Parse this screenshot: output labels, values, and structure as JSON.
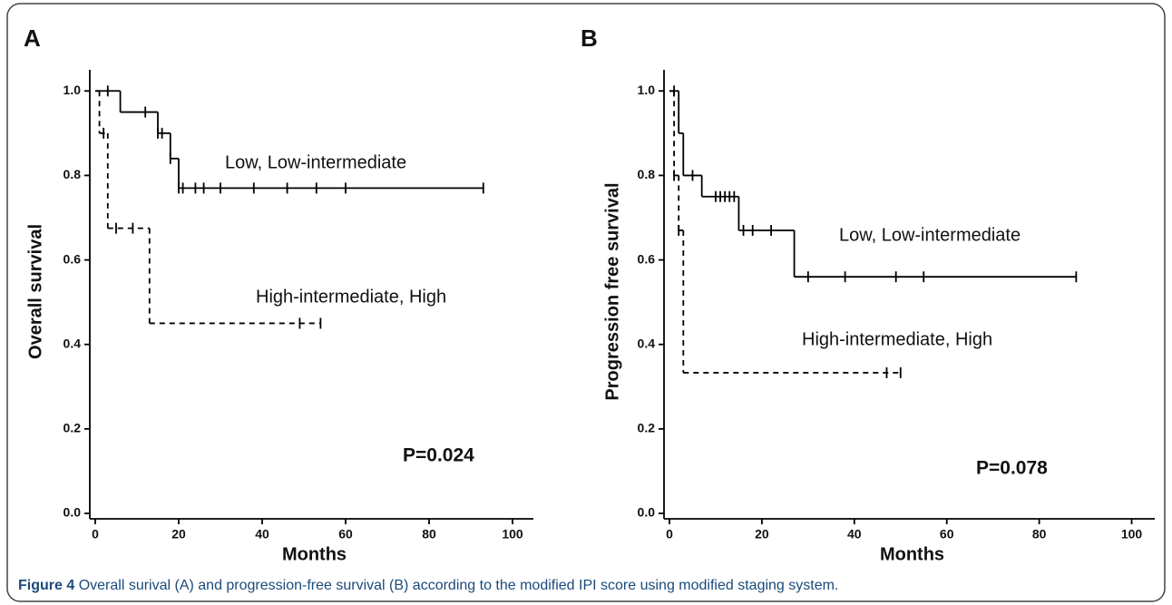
{
  "chart_data": [
    {
      "type": "line",
      "panel_label": "A",
      "xlabel": "Months",
      "ylabel": "Overall survival",
      "xlim": [
        0,
        105
      ],
      "xticks": [
        0,
        20,
        40,
        60,
        80,
        100
      ],
      "ylim": [
        0,
        1.05
      ],
      "yticks": [
        {
          "value": 0,
          "label": "0.0"
        },
        0.2,
        0.4,
        0.6,
        0.8,
        {
          "value": 1,
          "label": "1.0"
        }
      ],
      "series": [
        {
          "name": "Low, Low-intermediate",
          "color": "#000000",
          "dash": false,
          "x": [
            0,
            6,
            15,
            18,
            20,
            93
          ],
          "values": [
            1.0,
            0.95,
            0.9,
            0.84,
            0.77,
            0.77
          ],
          "censor_x": [
            3,
            12,
            15,
            16,
            18,
            20,
            21,
            24,
            26,
            30,
            38,
            46,
            53,
            60,
            93
          ],
          "censor_values": [
            1.0,
            0.95,
            0.9,
            0.9,
            0.84,
            0.77,
            0.77,
            0.77,
            0.77,
            0.77,
            0.77,
            0.77,
            0.77,
            0.77,
            0.77
          ]
        },
        {
          "name": "High-intermediate, High",
          "color": "#000000",
          "dash": true,
          "x": [
            0,
            1,
            3,
            13,
            54
          ],
          "values": [
            1.0,
            0.9,
            0.675,
            0.45,
            0.45
          ],
          "censor_x": [
            2,
            5,
            9,
            49,
            54
          ],
          "censor_values": [
            0.9,
            0.675,
            0.675,
            0.45,
            0.45
          ]
        }
      ],
      "p_value": "P=0.024"
    },
    {
      "type": "line",
      "panel_label": "B",
      "xlabel": "Months",
      "ylabel": "Progression free survival",
      "xlim": [
        0,
        105
      ],
      "xticks": [
        0,
        20,
        40,
        60,
        80,
        100
      ],
      "ylim": [
        0,
        1.05
      ],
      "yticks": [
        {
          "value": 0,
          "label": "0.0"
        },
        0.2,
        0.4,
        0.6,
        0.8,
        {
          "value": 1,
          "label": "1.0"
        }
      ],
      "series": [
        {
          "name": "Low, Low-intermediate",
          "color": "#000000",
          "dash": false,
          "x": [
            0,
            2,
            3,
            7,
            15,
            27,
            88
          ],
          "values": [
            1.0,
            0.9,
            0.8,
            0.75,
            0.67,
            0.56,
            0.56
          ],
          "censor_x": [
            1,
            5,
            10,
            11,
            12,
            13,
            14,
            16,
            18,
            22,
            30,
            38,
            49,
            55,
            88
          ],
          "censor_values": [
            1.0,
            0.8,
            0.75,
            0.75,
            0.75,
            0.75,
            0.75,
            0.67,
            0.67,
            0.67,
            0.56,
            0.56,
            0.56,
            0.56,
            0.56
          ]
        },
        {
          "name": "High-intermediate, High",
          "color": "#000000",
          "dash": true,
          "x": [
            0,
            1,
            2,
            3,
            50
          ],
          "values": [
            1.0,
            0.8,
            0.67,
            0.333,
            0.333
          ],
          "censor_x": [
            1,
            2,
            47,
            50
          ],
          "censor_values": [
            0.8,
            0.67,
            0.333,
            0.333
          ]
        }
      ],
      "p_value": "P=0.078"
    }
  ],
  "caption_label": "Figure 4",
  "caption": "Overall surival (A) and progression-free survival (B) according to the modified IPI score using modified staging system."
}
